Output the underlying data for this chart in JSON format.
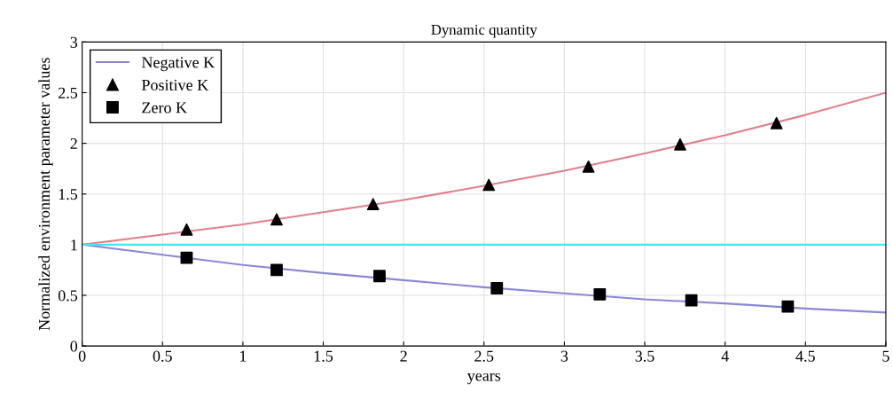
{
  "chart_data": {
    "type": "line",
    "title": "Dynamic quantity",
    "xlabel": "years",
    "ylabel": "Normalized environment parameter values",
    "xlim": [
      0,
      5
    ],
    "ylim": [
      0,
      3
    ],
    "xticks": [
      0,
      0.5,
      1,
      1.5,
      2,
      2.5,
      3,
      3.5,
      4,
      4.5,
      5
    ],
    "yticks": [
      0,
      0.5,
      1,
      1.5,
      2,
      2.5,
      3
    ],
    "grid": true,
    "legend": "top left",
    "series": [
      {
        "color": "#e08088",
        "x": [
          0,
          0.5,
          1,
          1.5,
          2,
          2.5,
          3,
          3.5,
          4,
          4.5,
          5
        ],
        "values": [
          1,
          1.1,
          1.2,
          1.32,
          1.44,
          1.58,
          1.73,
          1.9,
          2.08,
          2.28,
          2.5
        ]
      },
      {
        "name": "Negative K",
        "color": "#8888d8",
        "x": [
          0,
          0.5,
          1,
          1.5,
          2,
          2.5,
          3,
          3.5,
          4,
          4.5,
          5
        ],
        "values": [
          1,
          0.9,
          0.8,
          0.72,
          0.65,
          0.58,
          0.52,
          0.46,
          0.42,
          0.37,
          0.33
        ]
      },
      {
        "color": "#40e8f0",
        "x": [
          0,
          5
        ],
        "values": [
          1,
          1
        ]
      },
      {
        "name": "Positive K",
        "type": "scatter",
        "marker": "triangle",
        "color": "#000000",
        "x": [
          0.65,
          1.21,
          1.81,
          2.53,
          3.15,
          3.72,
          4.32
        ],
        "values": [
          1.15,
          1.25,
          1.4,
          1.59,
          1.77,
          1.99,
          2.2
        ]
      },
      {
        "name": "Zero K",
        "type": "scatter",
        "marker": "square",
        "color": "#000000",
        "x": [
          0.65,
          1.21,
          1.85,
          2.58,
          3.22,
          3.79,
          4.39
        ],
        "values": [
          0.87,
          0.75,
          0.69,
          0.57,
          0.51,
          0.45,
          0.39
        ]
      }
    ]
  }
}
